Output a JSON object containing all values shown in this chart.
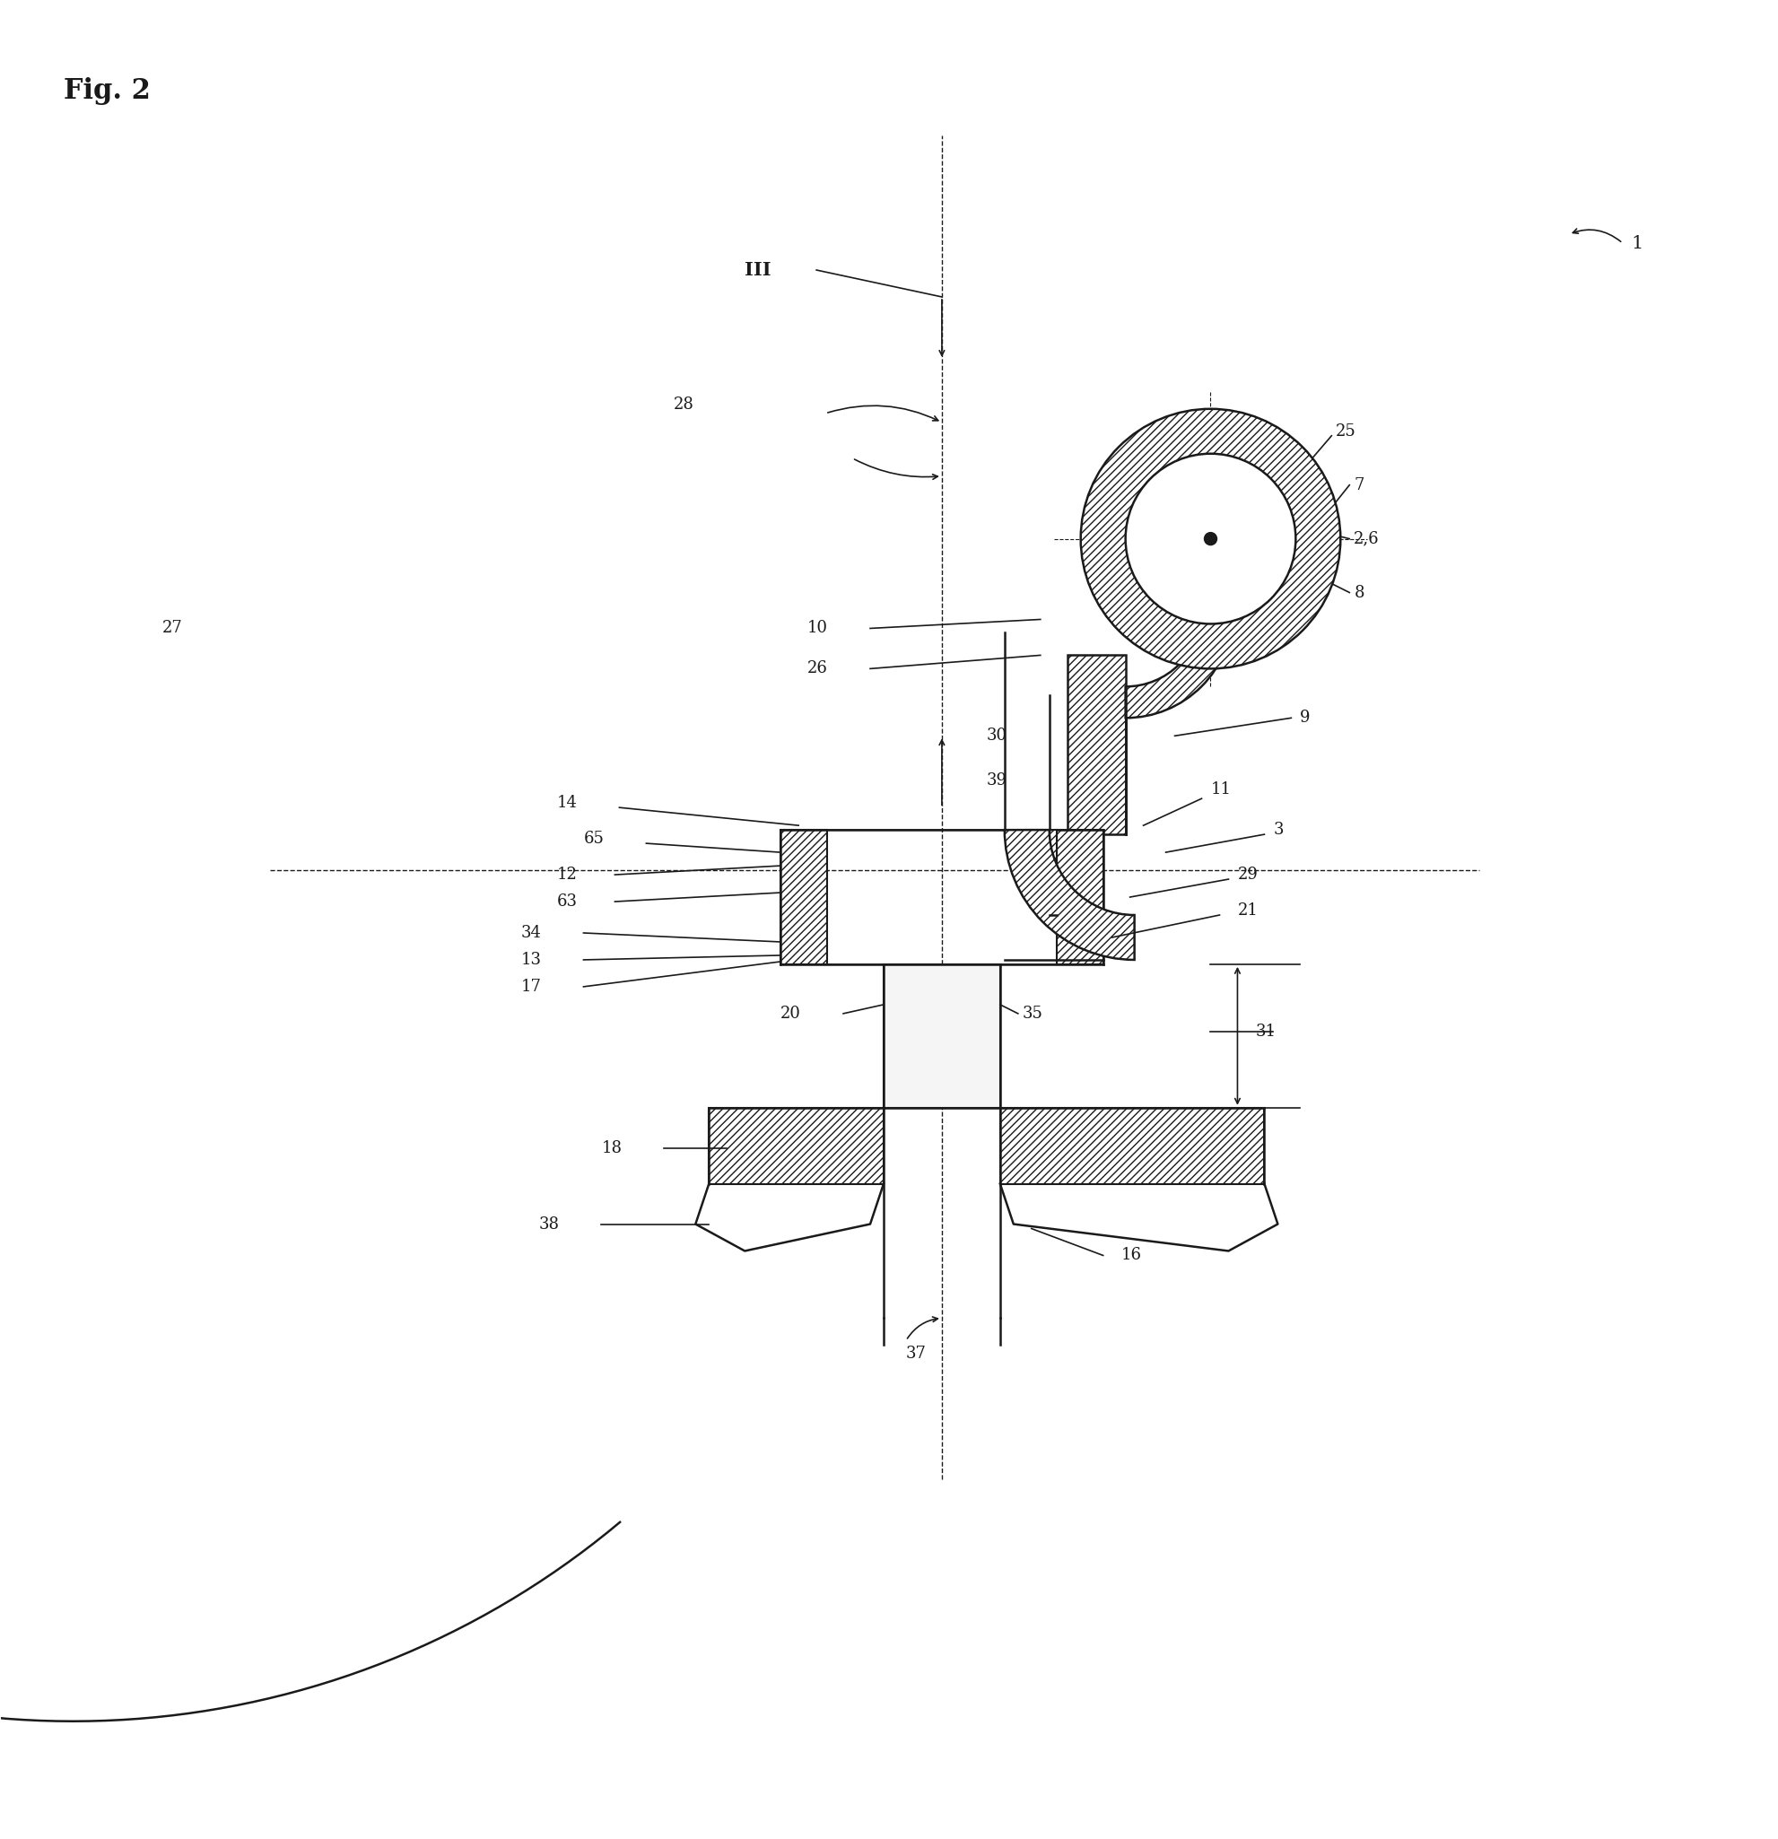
{
  "title": "Fig. 2",
  "bg_color": "#ffffff",
  "line_color": "#1a1a1a",
  "fig_width": 19.83,
  "fig_height": 20.5,
  "labels": {
    "fig_title": "Fig. 2",
    "label_1": "1",
    "label_III": "III",
    "label_28": "28",
    "label_27": "27",
    "label_25": "25",
    "label_7": "7",
    "label_26": "26",
    "label_10": "10",
    "label_2_6": "2,6",
    "label_8": "8",
    "label_9": "9",
    "label_14": "14",
    "label_65": "65",
    "label_30": "30",
    "label_39": "39",
    "label_12": "12",
    "label_63": "63",
    "label_11": "11",
    "label_3": "3",
    "label_29": "29",
    "label_34": "34",
    "label_13": "13",
    "label_17": "17",
    "label_21": "21",
    "label_20": "20",
    "label_35": "35",
    "label_31": "31",
    "label_18": "18",
    "label_38": "38",
    "label_16": "16",
    "label_37": "37"
  }
}
